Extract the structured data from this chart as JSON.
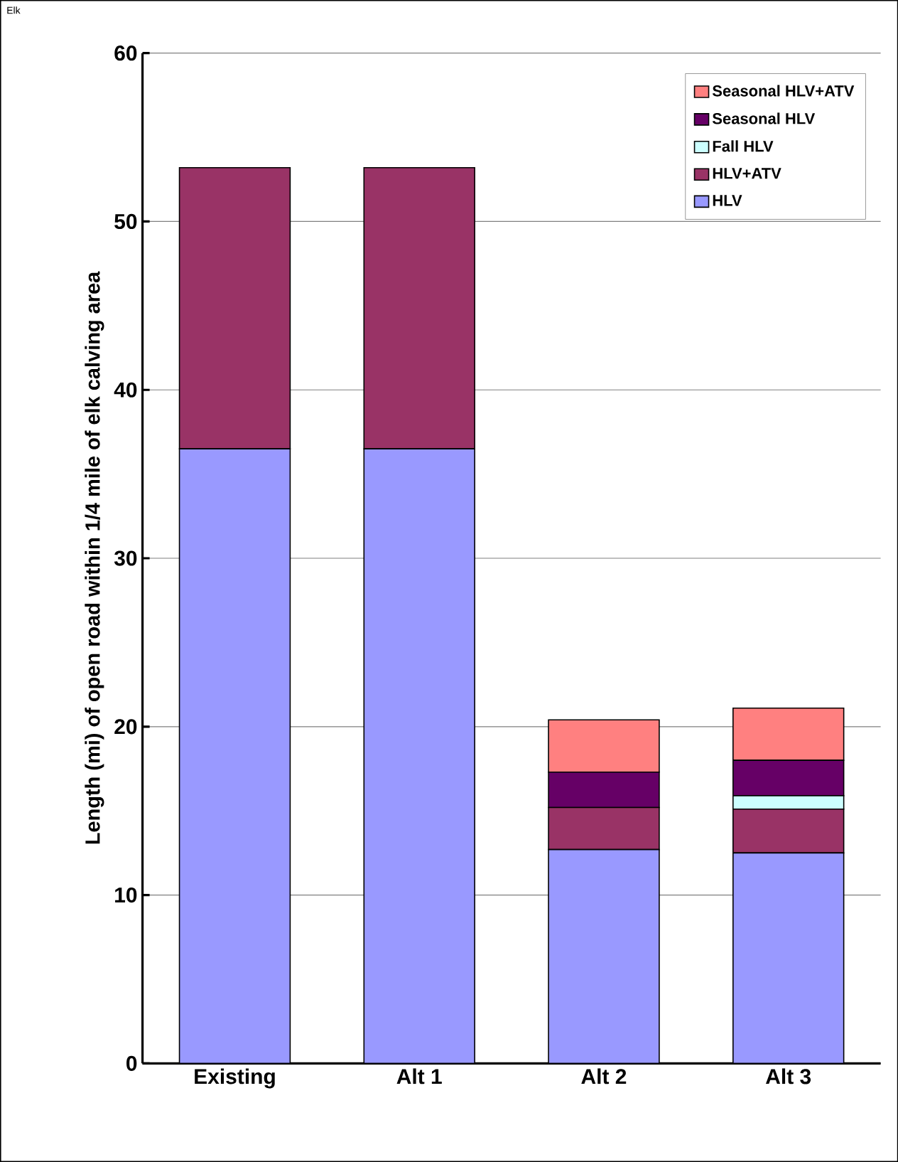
{
  "chart_data": {
    "type": "bar",
    "stacked": true,
    "title": "Elk",
    "ylabel": "Length (mi) of open road within 1/4 mile of elk calving area",
    "categories": [
      "Existing",
      "Alt 1",
      "Alt 2",
      "Alt 3"
    ],
    "series": [
      {
        "name": "HLV",
        "color": "#9999ff",
        "values": [
          36.5,
          36.5,
          12.7,
          12.5
        ]
      },
      {
        "name": "HLV+ATV",
        "color": "#993366",
        "values": [
          16.7,
          16.7,
          2.5,
          2.6
        ]
      },
      {
        "name": "Fall HLV",
        "color": "#ccffff",
        "values": [
          0,
          0,
          0,
          0.8
        ]
      },
      {
        "name": "Seasonal HLV",
        "color": "#660066",
        "values": [
          0,
          0,
          2.1,
          2.1
        ]
      },
      {
        "name": "Seasonal HLV+ATV",
        "color": "#ff8080",
        "values": [
          0,
          0,
          3.1,
          3.1
        ]
      }
    ],
    "ylim": [
      0,
      60
    ],
    "yticks": [
      0,
      10,
      20,
      30,
      40,
      50,
      60
    ],
    "grid": "y",
    "legend": "top right"
  }
}
